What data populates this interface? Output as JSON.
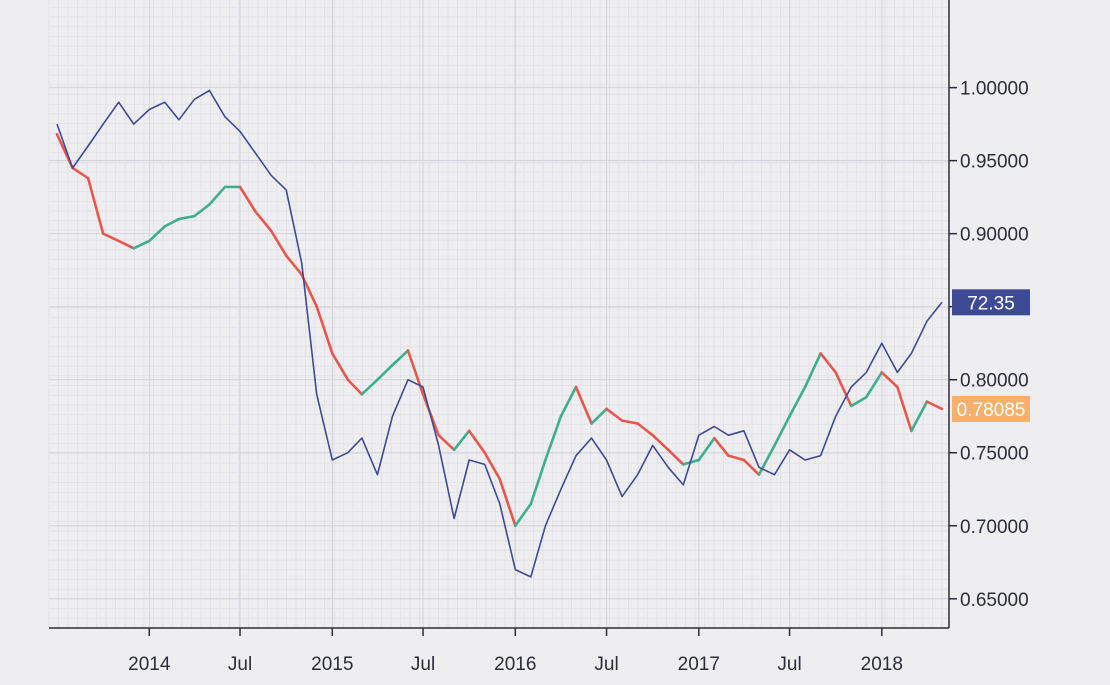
{
  "chart_data": {
    "type": "line",
    "grid": true,
    "x_range": [
      "2013-06-15",
      "2018-05-15"
    ],
    "ylim": [
      0.63,
      1.06
    ],
    "x_ticks": [
      {
        "date": "2014-01-01",
        "label": "2014"
      },
      {
        "date": "2014-07-01",
        "label": "Jul"
      },
      {
        "date": "2015-01-01",
        "label": "2015"
      },
      {
        "date": "2015-07-01",
        "label": "Jul"
      },
      {
        "date": "2016-01-01",
        "label": "2016"
      },
      {
        "date": "2016-07-01",
        "label": "Jul"
      },
      {
        "date": "2017-01-01",
        "label": "2017"
      },
      {
        "date": "2017-07-01",
        "label": "Jul"
      },
      {
        "date": "2018-01-01",
        "label": "2018"
      }
    ],
    "y_ticks": [
      {
        "value": 1.0,
        "label": "1.00000"
      },
      {
        "value": 0.95,
        "label": "0.95000"
      },
      {
        "value": 0.9,
        "label": "0.90000"
      },
      {
        "value": 0.85,
        "label": "0.85000"
      },
      {
        "value": 0.8,
        "label": "0.80000"
      },
      {
        "value": 0.75,
        "label": "0.75000"
      },
      {
        "value": 0.7,
        "label": "0.70000"
      },
      {
        "value": 0.65,
        "label": "0.65000"
      }
    ],
    "series": [
      {
        "style": "candlestick",
        "up_color": "#3fae8c",
        "down_color": "#e8574c",
        "last_label": "0.78085",
        "label_color": "#f7b16d",
        "points": [
          [
            "2013-07-01",
            0.968
          ],
          [
            "2013-08-01",
            0.945
          ],
          [
            "2013-09-01",
            0.938
          ],
          [
            "2013-10-01",
            0.9
          ],
          [
            "2013-11-01",
            0.895
          ],
          [
            "2013-12-01",
            0.89
          ],
          [
            "2014-01-01",
            0.895
          ],
          [
            "2014-02-01",
            0.905
          ],
          [
            "2014-03-01",
            0.91
          ],
          [
            "2014-04-01",
            0.912
          ],
          [
            "2014-05-01",
            0.92
          ],
          [
            "2014-06-01",
            0.932
          ],
          [
            "2014-07-01",
            0.932
          ],
          [
            "2014-08-01",
            0.915
          ],
          [
            "2014-09-01",
            0.902
          ],
          [
            "2014-10-01",
            0.885
          ],
          [
            "2014-11-01",
            0.872
          ],
          [
            "2014-12-01",
            0.85
          ],
          [
            "2015-01-01",
            0.818
          ],
          [
            "2015-02-01",
            0.8
          ],
          [
            "2015-03-01",
            0.79
          ],
          [
            "2015-04-01",
            0.8
          ],
          [
            "2015-05-01",
            0.81
          ],
          [
            "2015-06-01",
            0.82
          ],
          [
            "2015-07-01",
            0.79
          ],
          [
            "2015-08-01",
            0.762
          ],
          [
            "2015-09-01",
            0.752
          ],
          [
            "2015-10-01",
            0.765
          ],
          [
            "2015-11-01",
            0.75
          ],
          [
            "2015-12-01",
            0.732
          ],
          [
            "2016-01-01",
            0.7
          ],
          [
            "2016-02-01",
            0.715
          ],
          [
            "2016-03-01",
            0.745
          ],
          [
            "2016-04-01",
            0.775
          ],
          [
            "2016-05-01",
            0.795
          ],
          [
            "2016-06-01",
            0.77
          ],
          [
            "2016-07-01",
            0.78
          ],
          [
            "2016-08-01",
            0.772
          ],
          [
            "2016-09-01",
            0.77
          ],
          [
            "2016-10-01",
            0.762
          ],
          [
            "2016-11-01",
            0.752
          ],
          [
            "2016-12-01",
            0.742
          ],
          [
            "2017-01-01",
            0.745
          ],
          [
            "2017-02-01",
            0.76
          ],
          [
            "2017-03-01",
            0.748
          ],
          [
            "2017-04-01",
            0.745
          ],
          [
            "2017-05-01",
            0.735
          ],
          [
            "2017-06-01",
            0.755
          ],
          [
            "2017-07-01",
            0.775
          ],
          [
            "2017-08-01",
            0.795
          ],
          [
            "2017-09-01",
            0.818
          ],
          [
            "2017-10-01",
            0.805
          ],
          [
            "2017-11-01",
            0.782
          ],
          [
            "2017-12-01",
            0.788
          ],
          [
            "2018-01-01",
            0.805
          ],
          [
            "2018-02-01",
            0.795
          ],
          [
            "2018-03-01",
            0.765
          ],
          [
            "2018-04-01",
            0.785
          ],
          [
            "2018-05-01",
            0.78
          ]
        ]
      },
      {
        "style": "line",
        "color": "#3f4a95",
        "last_label": "72.35",
        "label_color": "#3f4a95",
        "points": [
          [
            "2013-07-01",
            0.975
          ],
          [
            "2013-08-01",
            0.945
          ],
          [
            "2013-09-01",
            0.96
          ],
          [
            "2013-10-01",
            0.975
          ],
          [
            "2013-11-01",
            0.99
          ],
          [
            "2013-12-01",
            0.975
          ],
          [
            "2014-01-01",
            0.985
          ],
          [
            "2014-02-01",
            0.99
          ],
          [
            "2014-03-01",
            0.978
          ],
          [
            "2014-04-01",
            0.992
          ],
          [
            "2014-05-01",
            0.998
          ],
          [
            "2014-06-01",
            0.98
          ],
          [
            "2014-07-01",
            0.97
          ],
          [
            "2014-08-01",
            0.955
          ],
          [
            "2014-09-01",
            0.94
          ],
          [
            "2014-10-01",
            0.93
          ],
          [
            "2014-11-01",
            0.88
          ],
          [
            "2014-12-01",
            0.79
          ],
          [
            "2015-01-01",
            0.745
          ],
          [
            "2015-02-01",
            0.75
          ],
          [
            "2015-03-01",
            0.76
          ],
          [
            "2015-04-01",
            0.735
          ],
          [
            "2015-05-01",
            0.775
          ],
          [
            "2015-06-01",
            0.8
          ],
          [
            "2015-07-01",
            0.795
          ],
          [
            "2015-08-01",
            0.755
          ],
          [
            "2015-09-01",
            0.705
          ],
          [
            "2015-10-01",
            0.745
          ],
          [
            "2015-11-01",
            0.742
          ],
          [
            "2015-12-01",
            0.715
          ],
          [
            "2016-01-01",
            0.67
          ],
          [
            "2016-02-01",
            0.665
          ],
          [
            "2016-03-01",
            0.7
          ],
          [
            "2016-04-01",
            0.725
          ],
          [
            "2016-05-01",
            0.748
          ],
          [
            "2016-06-01",
            0.76
          ],
          [
            "2016-07-01",
            0.745
          ],
          [
            "2016-08-01",
            0.72
          ],
          [
            "2016-09-01",
            0.735
          ],
          [
            "2016-10-01",
            0.755
          ],
          [
            "2016-11-01",
            0.74
          ],
          [
            "2016-12-01",
            0.728
          ],
          [
            "2017-01-01",
            0.762
          ],
          [
            "2017-02-01",
            0.768
          ],
          [
            "2017-03-01",
            0.762
          ],
          [
            "2017-04-01",
            0.765
          ],
          [
            "2017-05-01",
            0.74
          ],
          [
            "2017-06-01",
            0.735
          ],
          [
            "2017-07-01",
            0.752
          ],
          [
            "2017-08-01",
            0.745
          ],
          [
            "2017-09-01",
            0.748
          ],
          [
            "2017-10-01",
            0.775
          ],
          [
            "2017-11-01",
            0.795
          ],
          [
            "2017-12-01",
            0.805
          ],
          [
            "2018-01-01",
            0.825
          ],
          [
            "2018-02-01",
            0.805
          ],
          [
            "2018-03-01",
            0.818
          ],
          [
            "2018-04-01",
            0.84
          ],
          [
            "2018-05-01",
            0.853
          ]
        ]
      }
    ]
  }
}
